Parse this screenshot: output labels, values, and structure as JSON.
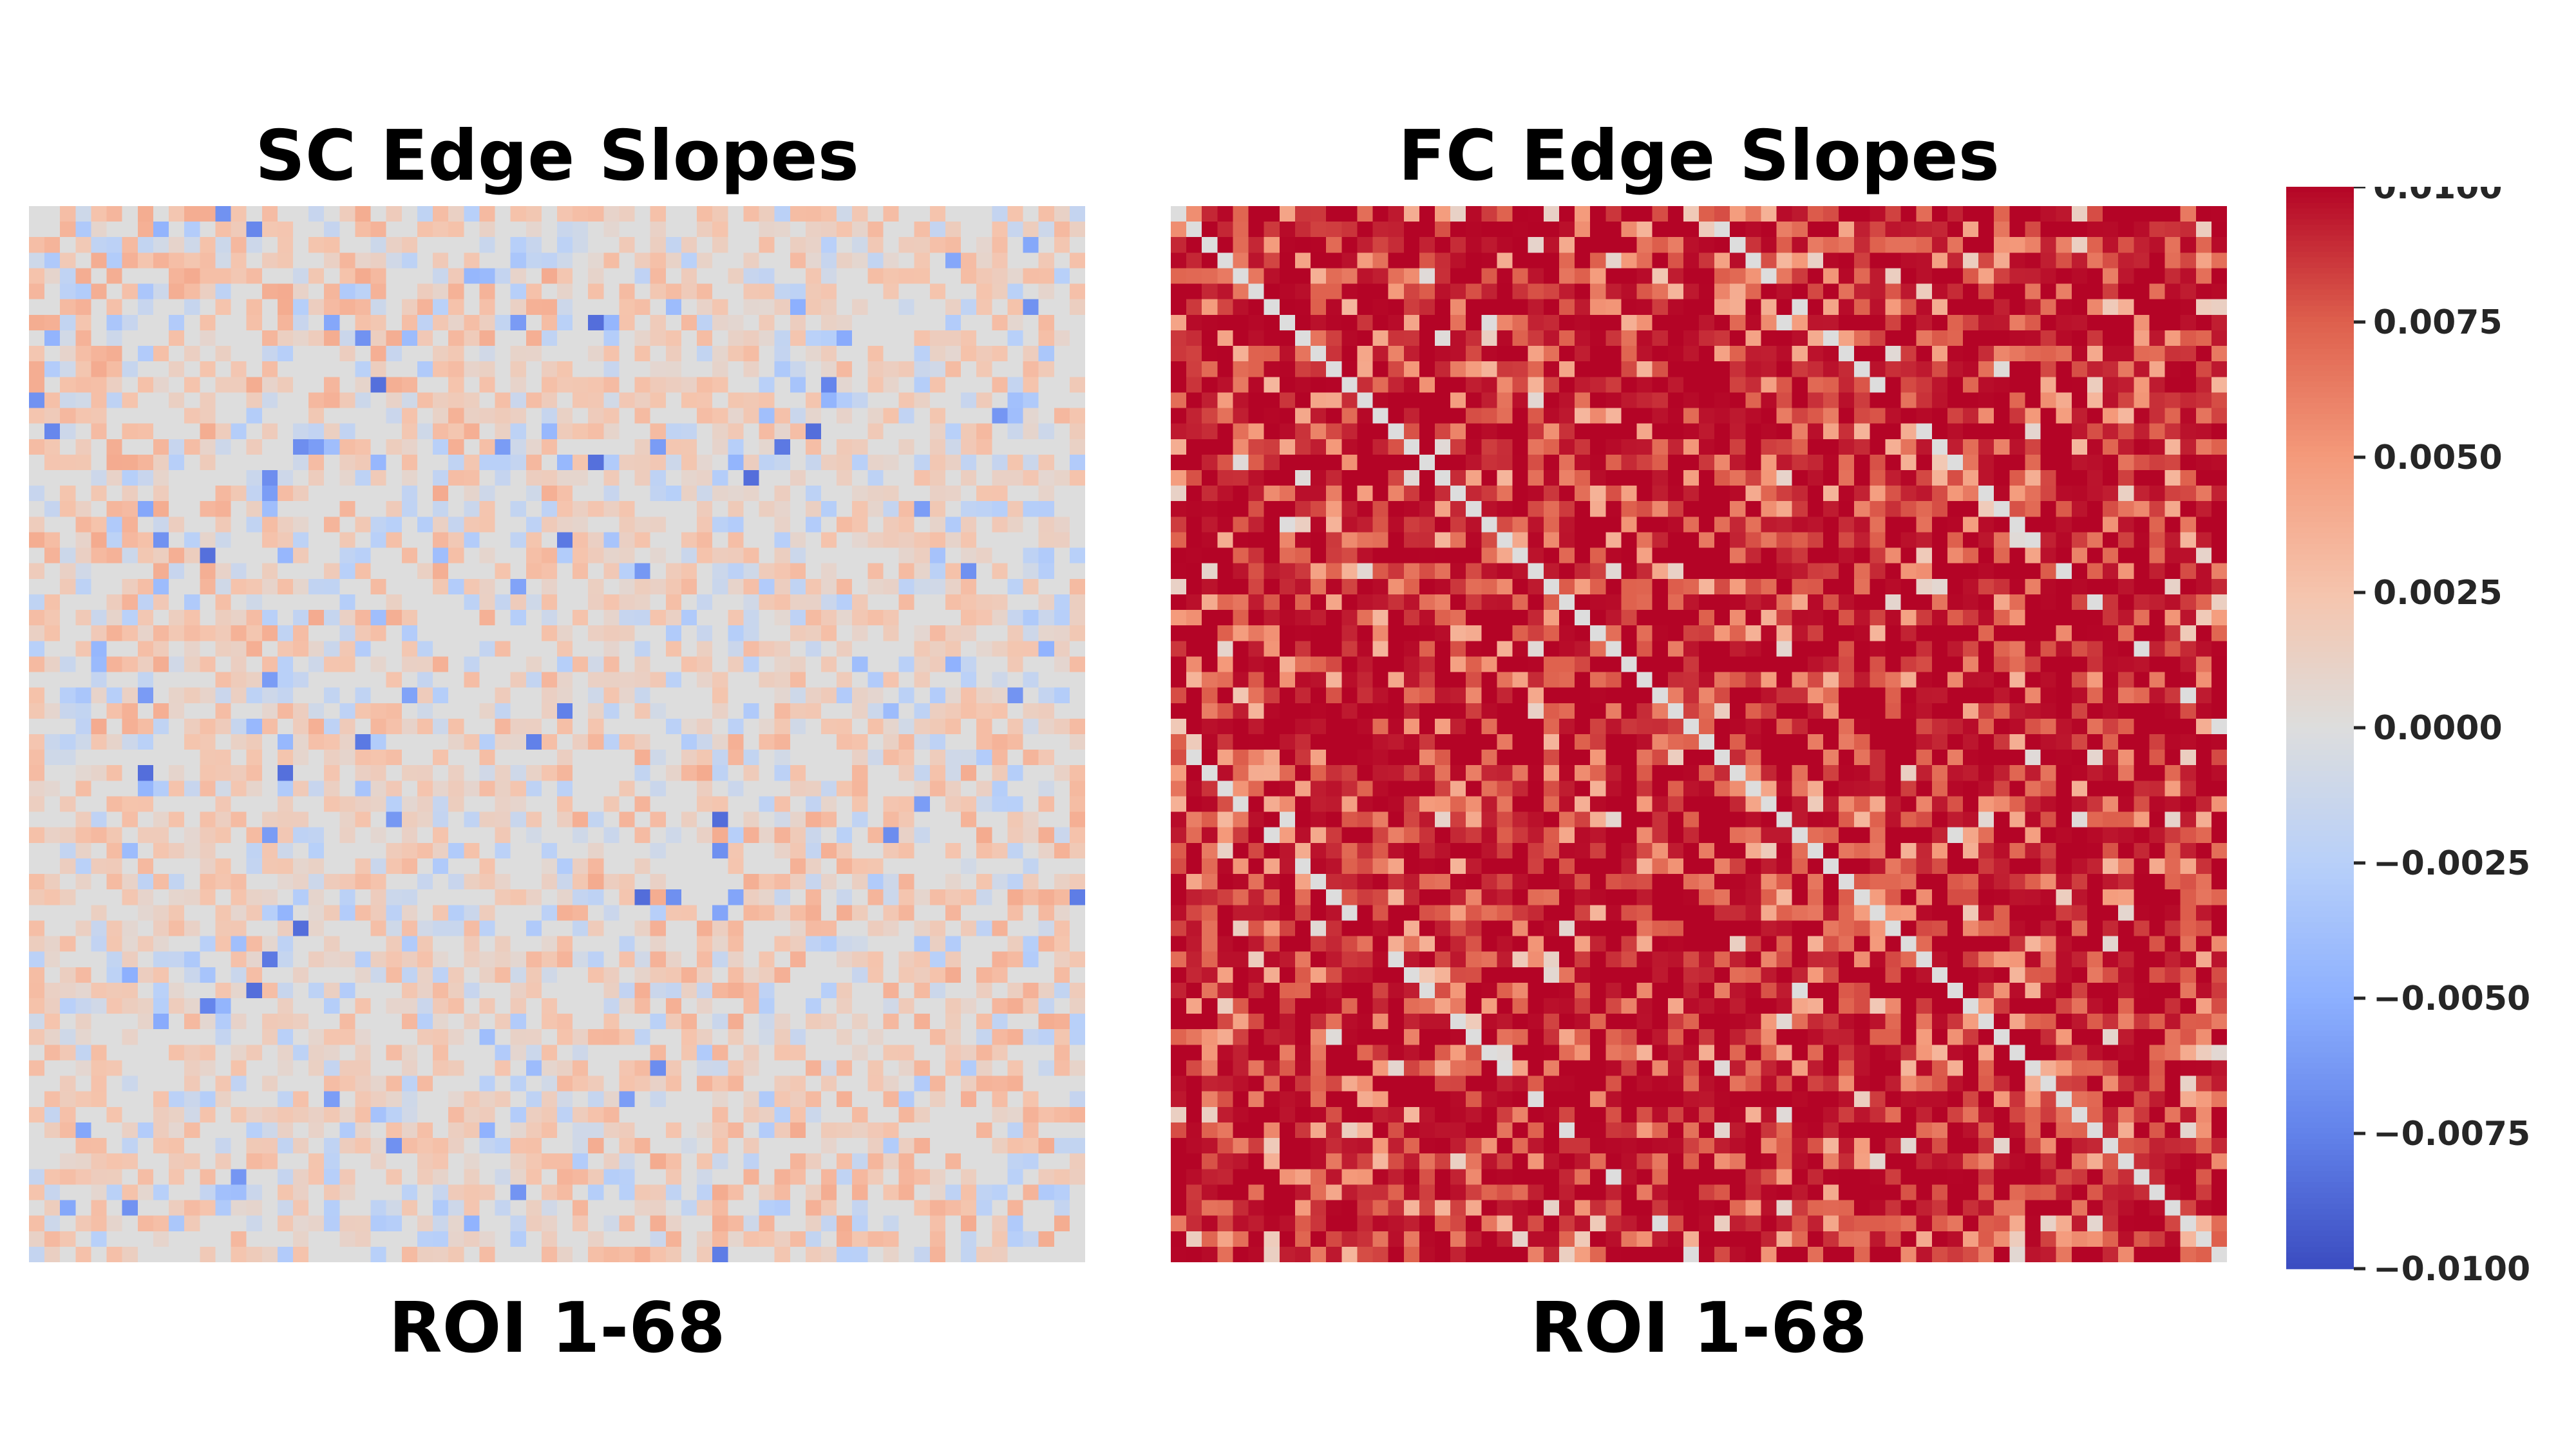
{
  "chart_data": [
    {
      "type": "heatmap",
      "title": "SC Edge Slopes",
      "xlabel": "ROI 1-68",
      "ylabel": "",
      "rows": 68,
      "cols": 68,
      "colormap": "coolwarm",
      "vmin": -0.01,
      "vmax": 0.01,
      "value_range_observed": [
        -0.0085,
        0.0045
      ],
      "typical_value": 0.0015,
      "notes": "Mostly near zero (grey) with scattered weak positive (light red) and weak negative (light blue) edges"
    },
    {
      "type": "heatmap",
      "title": "FC Edge Slopes",
      "xlabel": "ROI 1-68",
      "ylabel": "",
      "rows": 68,
      "cols": 68,
      "colormap": "coolwarm",
      "vmin": -0.01,
      "vmax": 0.01,
      "value_range_observed": [
        -0.0025,
        0.01
      ],
      "typical_value": 0.0085,
      "diagonal_value": 0.0,
      "notes": "Predominantly strong positive (red) edges; diagonal is zero (grey)"
    }
  ],
  "colorbar": {
    "colormap": "coolwarm",
    "min": -0.01,
    "max": 0.01,
    "ticks": [
      0.01,
      0.0075,
      0.005,
      0.0025,
      0.0,
      -0.0025,
      -0.005,
      -0.0075,
      -0.01
    ],
    "tick_labels": [
      "0.0100",
      "0.0075",
      "0.0050",
      "0.0025",
      "0.0000",
      "−0.0025",
      "−0.0050",
      "−0.0075",
      "−0.0100"
    ],
    "colors": {
      "low": "#3b4cc0",
      "mid": "#dddddd",
      "high": "#b40426"
    }
  }
}
